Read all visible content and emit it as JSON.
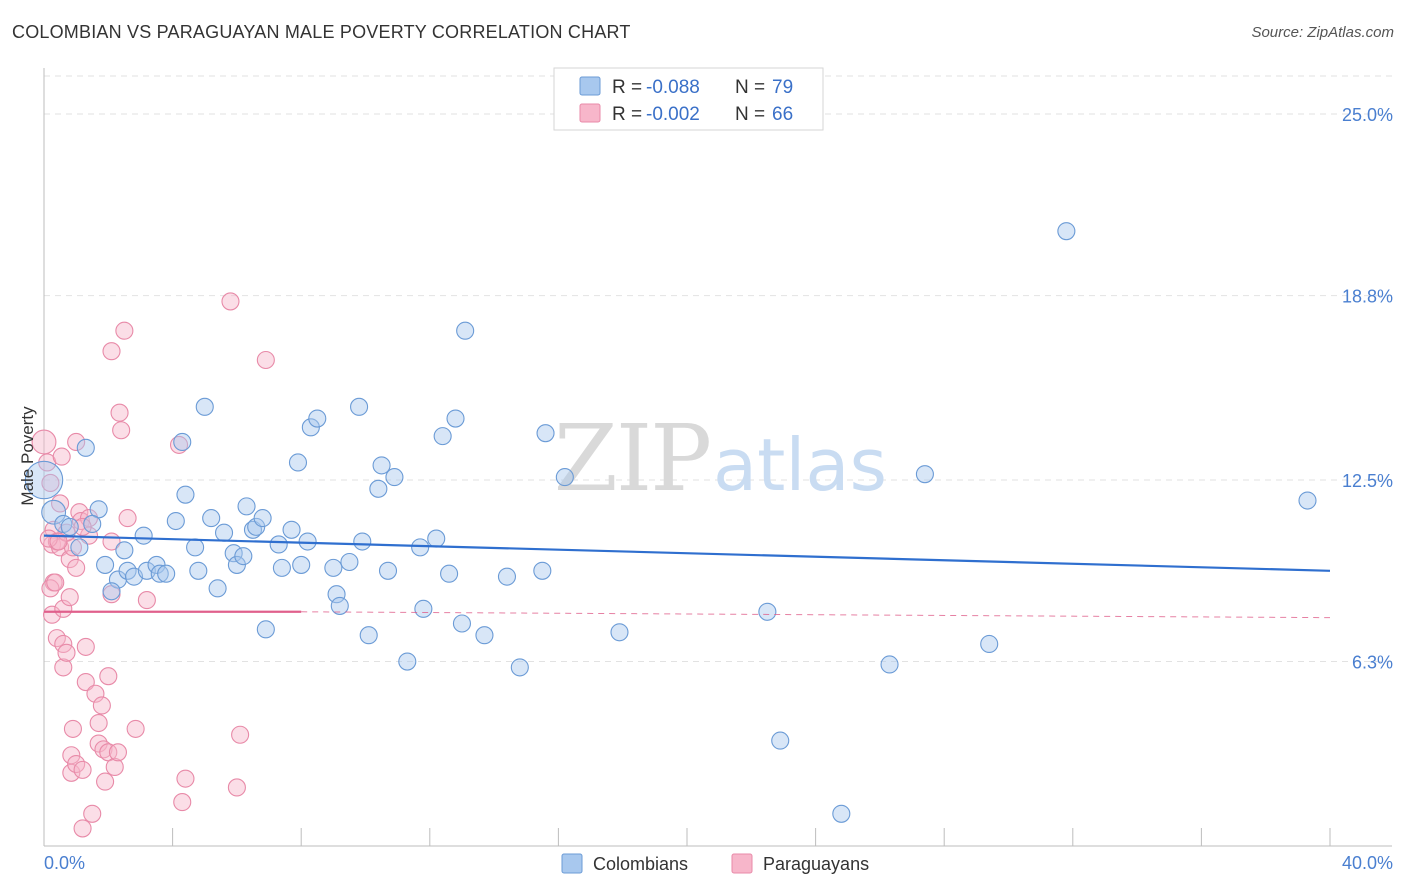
{
  "title": "COLOMBIAN VS PARAGUAYAN MALE POVERTY CORRELATION CHART",
  "source": "Source: ZipAtlas.com",
  "watermark": {
    "zip": "ZIP",
    "atlas": "atlas"
  },
  "colors": {
    "blue_fill": "#a8c8ee",
    "blue_stroke": "#6b9bd6",
    "blue_line": "#2f6fcf",
    "pink_fill": "#f7b6ca",
    "pink_stroke": "#e88aa8",
    "pink_line": "#e0608c",
    "axis_text": "#4a7fd0",
    "grid": "#e2e2e2"
  },
  "legend_top": {
    "rows": [
      {
        "r_label": "R = ",
        "r_value": "-0.088",
        "n_label": "N = ",
        "n_value": "79",
        "series": "Colombians"
      },
      {
        "r_label": "R = ",
        "r_value": "-0.002",
        "n_label": "N = ",
        "n_value": "66",
        "series": "Paraguayans"
      }
    ]
  },
  "chart_data": {
    "type": "scatter",
    "xlabel": "",
    "ylabel": "Male Poverty",
    "xlim": [
      0,
      40
    ],
    "ylim": [
      0,
      26.3
    ],
    "x_tick_labels": [
      "0.0%",
      "40.0%"
    ],
    "y_ticks": [
      6.3,
      12.5,
      18.8,
      25.0
    ],
    "y_tick_labels": [
      "6.3%",
      "12.5%",
      "18.8%",
      "25.0%"
    ],
    "grid": true,
    "series": [
      {
        "name": "Colombians",
        "trend": {
          "x": [
            0,
            40
          ],
          "y": [
            10.6,
            9.4
          ]
        },
        "points": [
          [
            0.0,
            12.5,
            2.2
          ],
          [
            0.3,
            11.4,
            1.4
          ],
          [
            0.6,
            11.0,
            1.0
          ],
          [
            1.3,
            13.6,
            1.0
          ],
          [
            1.7,
            11.5,
            1.0
          ],
          [
            1.5,
            11.0,
            1.0
          ],
          [
            1.1,
            10.2,
            1.0
          ],
          [
            1.9,
            9.6,
            1.0
          ],
          [
            2.3,
            9.1,
            1.0
          ],
          [
            2.1,
            8.7,
            1.0
          ],
          [
            2.5,
            10.1,
            1.0
          ],
          [
            2.6,
            9.4,
            1.0
          ],
          [
            2.8,
            9.2,
            1.0
          ],
          [
            3.1,
            10.6,
            1.0
          ],
          [
            3.2,
            9.4,
            1.0
          ],
          [
            3.5,
            9.6,
            1.0
          ],
          [
            3.6,
            9.3,
            1.0
          ],
          [
            3.8,
            9.3,
            1.0
          ],
          [
            4.1,
            11.1,
            1.0
          ],
          [
            4.3,
            13.8,
            1.0
          ],
          [
            4.4,
            12.0,
            1.0
          ],
          [
            4.7,
            10.2,
            1.0
          ],
          [
            4.8,
            9.4,
            1.0
          ],
          [
            5.0,
            15.0,
            1.0
          ],
          [
            5.2,
            11.2,
            1.0
          ],
          [
            5.4,
            8.8,
            1.0
          ],
          [
            5.6,
            10.7,
            1.0
          ],
          [
            5.9,
            10.0,
            1.0
          ],
          [
            6.0,
            9.6,
            1.0
          ],
          [
            6.2,
            9.9,
            1.0
          ],
          [
            6.3,
            11.6,
            1.0
          ],
          [
            6.5,
            10.8,
            1.0
          ],
          [
            6.6,
            10.9,
            1.0
          ],
          [
            6.8,
            11.2,
            1.0
          ],
          [
            6.9,
            7.4,
            1.0
          ],
          [
            7.3,
            10.3,
            1.0
          ],
          [
            7.4,
            9.5,
            1.0
          ],
          [
            7.7,
            10.8,
            1.0
          ],
          [
            7.9,
            13.1,
            1.0
          ],
          [
            8.0,
            9.6,
            1.0
          ],
          [
            8.2,
            10.4,
            1.0
          ],
          [
            8.3,
            14.3,
            1.0
          ],
          [
            8.5,
            14.6,
            1.0
          ],
          [
            9.0,
            9.5,
            1.0
          ],
          [
            9.1,
            8.6,
            1.0
          ],
          [
            9.2,
            8.2,
            1.0
          ],
          [
            9.5,
            9.7,
            1.0
          ],
          [
            9.8,
            15.0,
            1.0
          ],
          [
            9.9,
            10.4,
            1.0
          ],
          [
            10.1,
            7.2,
            1.0
          ],
          [
            10.4,
            12.2,
            1.0
          ],
          [
            10.5,
            13.0,
            1.0
          ],
          [
            10.7,
            9.4,
            1.0
          ],
          [
            10.9,
            12.6,
            1.0
          ],
          [
            11.3,
            6.3,
            1.0
          ],
          [
            11.7,
            10.2,
            1.0
          ],
          [
            11.8,
            8.1,
            1.0
          ],
          [
            12.2,
            10.5,
            1.0
          ],
          [
            12.4,
            14.0,
            1.0
          ],
          [
            12.6,
            9.3,
            1.0
          ],
          [
            12.8,
            14.6,
            1.0
          ],
          [
            13.0,
            7.6,
            1.0
          ],
          [
            13.1,
            17.6,
            1.0
          ],
          [
            13.7,
            7.2,
            1.0
          ],
          [
            14.4,
            9.2,
            1.0
          ],
          [
            14.8,
            6.1,
            1.0
          ],
          [
            15.5,
            9.4,
            1.0
          ],
          [
            15.6,
            14.1,
            1.0
          ],
          [
            16.2,
            12.6,
            1.0
          ],
          [
            17.9,
            7.3,
            1.0
          ],
          [
            22.5,
            8.0,
            1.0
          ],
          [
            22.9,
            3.6,
            1.0
          ],
          [
            24.8,
            1.1,
            1.0
          ],
          [
            26.3,
            6.2,
            1.0
          ],
          [
            27.4,
            12.7,
            1.0
          ],
          [
            29.4,
            6.9,
            1.0
          ],
          [
            31.8,
            21.0,
            1.0
          ],
          [
            39.3,
            11.8,
            1.0
          ],
          [
            0.8,
            10.9,
            1.0
          ]
        ]
      },
      {
        "name": "Paraguayans",
        "trend": {
          "x": [
            0,
            8
          ],
          "y": [
            8.0,
            8.0
          ]
        },
        "trend_dashed": {
          "x": [
            8,
            40
          ],
          "y": [
            8.0,
            7.8
          ]
        },
        "points": [
          [
            0.0,
            13.8,
            1.4
          ],
          [
            0.1,
            13.1,
            1.0
          ],
          [
            0.2,
            12.4,
            1.0
          ],
          [
            0.3,
            10.8,
            1.0
          ],
          [
            0.25,
            10.3,
            1.0
          ],
          [
            0.3,
            9.0,
            1.0
          ],
          [
            0.2,
            8.8,
            1.0
          ],
          [
            0.25,
            7.9,
            1.0
          ],
          [
            0.4,
            7.1,
            1.0
          ],
          [
            0.4,
            10.4,
            1.0
          ],
          [
            0.5,
            10.2,
            1.0
          ],
          [
            0.55,
            13.3,
            1.0
          ],
          [
            0.6,
            8.1,
            1.0
          ],
          [
            0.6,
            6.9,
            1.0
          ],
          [
            0.6,
            6.1,
            1.0
          ],
          [
            0.7,
            6.6,
            1.0
          ],
          [
            0.8,
            9.8,
            1.0
          ],
          [
            0.8,
            8.5,
            1.0
          ],
          [
            0.9,
            10.2,
            1.0
          ],
          [
            0.9,
            4.0,
            1.0
          ],
          [
            0.85,
            3.1,
            1.0
          ],
          [
            0.85,
            2.5,
            1.0
          ],
          [
            1.0,
            9.5,
            1.0
          ],
          [
            1.0,
            2.8,
            1.0
          ],
          [
            1.0,
            13.8,
            1.0
          ],
          [
            1.1,
            11.4,
            1.0
          ],
          [
            1.15,
            11.1,
            1.0
          ],
          [
            1.2,
            0.6,
            1.0
          ],
          [
            1.2,
            2.6,
            1.0
          ],
          [
            1.3,
            6.8,
            1.0
          ],
          [
            1.3,
            5.6,
            1.0
          ],
          [
            1.4,
            10.6,
            1.0
          ],
          [
            1.4,
            11.2,
            1.0
          ],
          [
            1.5,
            1.1,
            1.0
          ],
          [
            1.6,
            5.2,
            1.0
          ],
          [
            1.7,
            4.2,
            1.0
          ],
          [
            1.7,
            3.5,
            1.0
          ],
          [
            1.8,
            4.8,
            1.0
          ],
          [
            1.85,
            3.3,
            1.0
          ],
          [
            1.9,
            2.2,
            1.0
          ],
          [
            2.0,
            5.8,
            1.0
          ],
          [
            2.0,
            3.2,
            1.0
          ],
          [
            2.1,
            10.4,
            1.0
          ],
          [
            2.1,
            8.6,
            1.0
          ],
          [
            2.1,
            16.9,
            1.0
          ],
          [
            2.2,
            2.7,
            1.0
          ],
          [
            2.3,
            3.2,
            1.0
          ],
          [
            2.35,
            14.8,
            1.0
          ],
          [
            2.4,
            14.2,
            1.0
          ],
          [
            2.5,
            17.6,
            1.0
          ],
          [
            2.6,
            11.2,
            1.0
          ],
          [
            2.85,
            4.0,
            1.0
          ],
          [
            3.2,
            8.4,
            1.0
          ],
          [
            4.2,
            13.7,
            1.0
          ],
          [
            4.3,
            1.5,
            1.0
          ],
          [
            4.4,
            2.3,
            1.0
          ],
          [
            5.8,
            18.6,
            1.0
          ],
          [
            6.0,
            2.0,
            1.0
          ],
          [
            6.1,
            3.8,
            1.0
          ],
          [
            6.9,
            16.6,
            1.0
          ],
          [
            0.15,
            10.5,
            1.0
          ],
          [
            0.5,
            11.7,
            1.0
          ],
          [
            0.7,
            10.7,
            1.0
          ],
          [
            1.2,
            10.9,
            1.0
          ],
          [
            0.35,
            9.0,
            1.0
          ],
          [
            0.45,
            10.4,
            1.0
          ]
        ]
      }
    ]
  }
}
